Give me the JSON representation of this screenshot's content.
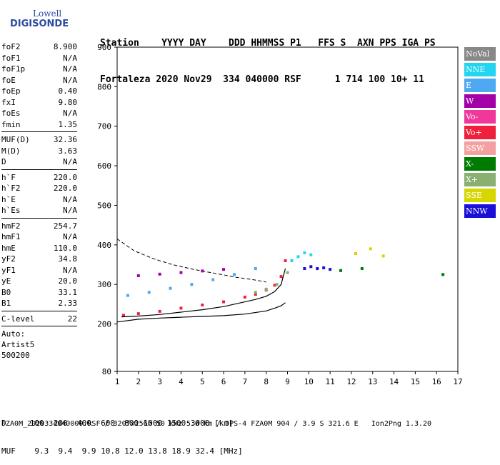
{
  "logo": {
    "line1": "Lowell",
    "line2": "DIGISONDE"
  },
  "header": {
    "row1": "Station    YYYY DAY    DDD HHMMSS P1   FFS S  AXN PPS IGA PS",
    "row2": "Fortaleza 2020 Nov29  334 040000 RSF      1 714 100 10+ 11"
  },
  "params": [
    {
      "k": "foF2",
      "v": "8.900"
    },
    {
      "k": "foF1",
      "v": "N/A"
    },
    {
      "k": "foF1p",
      "v": "N/A"
    },
    {
      "k": "foE",
      "v": "N/A"
    },
    {
      "k": "foEp",
      "v": "0.40"
    },
    {
      "k": "fxI",
      "v": "9.80"
    },
    {
      "k": "foEs",
      "v": "N/A"
    },
    {
      "k": "fmin",
      "v": "1.35"
    },
    {
      "sep": true
    },
    {
      "k": "MUF(D)",
      "v": "32.36"
    },
    {
      "k": "M(D)",
      "v": "3.63"
    },
    {
      "k": "D",
      "v": "N/A"
    },
    {
      "sep": true
    },
    {
      "k": "h`F",
      "v": "220.0"
    },
    {
      "k": "h`F2",
      "v": "220.0"
    },
    {
      "k": "h`E",
      "v": "N/A"
    },
    {
      "k": "h`Es",
      "v": "N/A"
    },
    {
      "sep": true
    },
    {
      "k": "hmF2",
      "v": "254.7"
    },
    {
      "k": "hmF1",
      "v": "N/A"
    },
    {
      "k": "hmE",
      "v": "110.0"
    },
    {
      "k": "yF2",
      "v": "34.8"
    },
    {
      "k": "yF1",
      "v": "N/A"
    },
    {
      "k": "yE",
      "v": "20.0"
    },
    {
      "k": "B0",
      "v": "33.1"
    },
    {
      "k": "B1",
      "v": "2.33"
    },
    {
      "sep": true
    },
    {
      "k": "C-level",
      "v": "22"
    },
    {
      "sep": true
    }
  ],
  "auto": {
    "line1": "Auto:",
    "line2": "Artist5",
    "line3": "500200"
  },
  "legend": [
    {
      "label": "NoVal",
      "color": "#888888"
    },
    {
      "label": "NNE",
      "color": "#22d5f0"
    },
    {
      "label": "E",
      "color": "#4ea8f2"
    },
    {
      "label": "W",
      "color": "#a300a8"
    },
    {
      "label": "Vo-",
      "color": "#f0389a"
    },
    {
      "label": "Vo+",
      "color": "#f0203c"
    },
    {
      "label": "SSW",
      "color": "#f5a0a0"
    },
    {
      "label": "X-",
      "color": "#007a00"
    },
    {
      "label": "X+",
      "color": "#88b070"
    },
    {
      "label": "SSE",
      "color": "#d6d600"
    },
    {
      "label": "NNW",
      "color": "#1a10d8"
    }
  ],
  "footer": {
    "row1": "D     100  200  400  600  800 1000 1500 3000 [km]",
    "row2": "MUF    9.3  9.4  9.9 10.8 12.0 13.8 18.9 32.4 [MHz]",
    "row3": "FZA0M_2020334040000.RSF / 320fx256h 50 kHz 5.0 km / DPS-4 FZA0M 904 / 3.9 S 321.6 E   Ion2Png 1.3.20"
  },
  "chart_data": {
    "type": "scatter",
    "title": "",
    "xlabel": "",
    "ylabel": "",
    "xlim": [
      1,
      17
    ],
    "ylim": [
      80,
      900
    ],
    "xticks": [
      1,
      2,
      3,
      4,
      5,
      6,
      7,
      8,
      9,
      10,
      11,
      12,
      13,
      14,
      15,
      16,
      17
    ],
    "yticks": [
      80,
      200,
      300,
      400,
      500,
      600,
      700,
      800,
      900
    ],
    "series": [
      {
        "name": "Vo+",
        "color": "#f0203c",
        "x": [
          1.3,
          2.0,
          3.0,
          4.0,
          5.0,
          6.0,
          7.0,
          7.5,
          8.0,
          8.4,
          8.7,
          8.9
        ],
        "y": [
          222,
          226,
          232,
          240,
          248,
          256,
          268,
          275,
          286,
          298,
          320,
          360
        ]
      },
      {
        "name": "E",
        "color": "#4ea8f2",
        "x": [
          1.5,
          2.5,
          3.5,
          4.5,
          5.5,
          6.5,
          7.5
        ],
        "y": [
          272,
          280,
          290,
          300,
          312,
          325,
          340
        ]
      },
      {
        "name": "W",
        "color": "#a300a8",
        "x": [
          2.0,
          3.0,
          4.0,
          5.0,
          6.0
        ],
        "y": [
          322,
          326,
          330,
          334,
          338
        ]
      },
      {
        "name": "NNE",
        "color": "#22d5f0",
        "x": [
          9.2,
          9.5,
          9.8,
          10.1
        ],
        "y": [
          360,
          370,
          380,
          375
        ]
      },
      {
        "name": "NNW",
        "color": "#1a10d8",
        "x": [
          9.8,
          10.1,
          10.4,
          10.7,
          11.0
        ],
        "y": [
          340,
          345,
          340,
          342,
          338
        ]
      },
      {
        "name": "X+",
        "color": "#88b070",
        "x": [
          7.5,
          8.0,
          8.5,
          9.0
        ],
        "y": [
          280,
          288,
          300,
          330
        ]
      },
      {
        "name": "SSE",
        "color": "#d6d600",
        "x": [
          12.2,
          12.9,
          13.5
        ],
        "y": [
          378,
          390,
          372
        ]
      },
      {
        "name": "X-",
        "color": "#007a00",
        "x": [
          11.5,
          12.5,
          16.3
        ],
        "y": [
          335,
          340,
          325
        ]
      }
    ],
    "profile": {
      "x": [
        1.0,
        2.0,
        3.0,
        4.0,
        5.0,
        6.0,
        7.0,
        8.0,
        8.4,
        8.7,
        8.9
      ],
      "y": [
        205,
        212,
        215,
        217,
        219,
        221,
        225,
        233,
        240,
        246,
        254
      ]
    },
    "virtual_trace": {
      "x": [
        1.2,
        2.0,
        3.0,
        4.0,
        5.0,
        6.0,
        7.0,
        7.5,
        8.0,
        8.4,
        8.7,
        8.9
      ],
      "y": [
        218,
        220,
        224,
        230,
        236,
        244,
        256,
        262,
        270,
        282,
        300,
        340
      ]
    },
    "dashed_trace": {
      "x": [
        1.0,
        1.8,
        2.7,
        3.6,
        4.6,
        5.6,
        6.6,
        7.4,
        8.0
      ],
      "y": [
        415,
        385,
        365,
        350,
        338,
        328,
        318,
        312,
        306
      ]
    }
  }
}
